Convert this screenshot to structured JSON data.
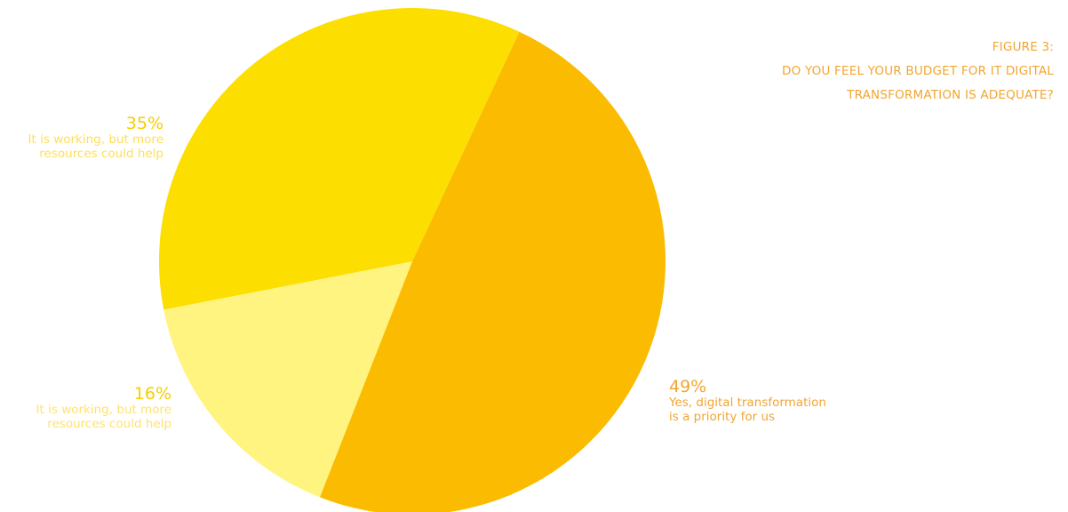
{
  "figure_label": "FIGURE 3:",
  "title_lines": [
    "DO YOU FEEL YOUR BUDGET FOR IT DIGITAL",
    "TRANSFORMATION IS ADEQUATE?"
  ],
  "chart_data": {
    "type": "pie",
    "title": "DO YOU FEEL YOUR BUDGET FOR IT DIGITAL TRANSFORMATION IS ADEQUATE?",
    "slices": [
      {
        "label": "Yes, digital transformation is a priority for us",
        "value": 49,
        "display": "49%",
        "color": "#FABB00"
      },
      {
        "label": "It is working, but more resources could help",
        "value": 16,
        "display": "16%",
        "color": "#FFF47F"
      },
      {
        "label": "It is working, but more resources could help",
        "value": 35,
        "display": "35%",
        "color": "#FCDE00"
      }
    ]
  },
  "labels": {
    "s35": {
      "pct": "35%",
      "line1": "It is working, but more",
      "line2": "resources could help"
    },
    "s16": {
      "pct": "16%",
      "line1": "It is working, but more",
      "line2": "resources could help"
    },
    "s49": {
      "pct": "49%",
      "line1": "Yes, digital transformation",
      "line2": "is a priority for us"
    }
  }
}
